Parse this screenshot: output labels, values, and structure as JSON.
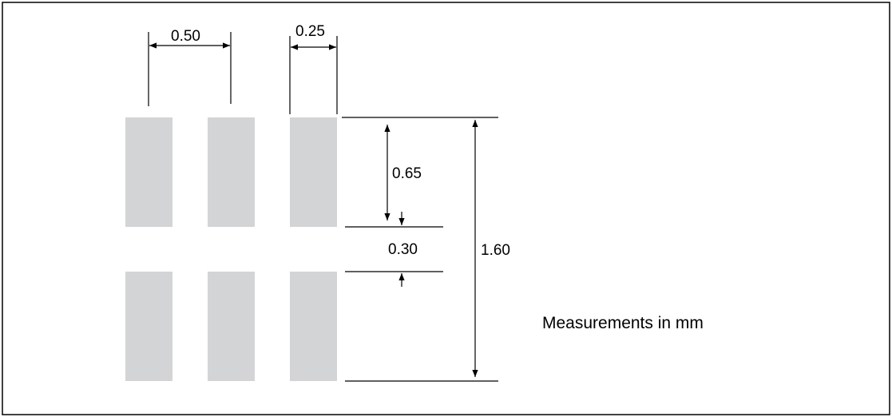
{
  "colors": {
    "pad_fill": "#d3d4d6",
    "line": "#000000",
    "frame": "#000000",
    "background": "#ffffff"
  },
  "pads": {
    "columns": 3,
    "rows": 2
  },
  "dimensions": {
    "pitch": "0.50",
    "pad_width": "0.25",
    "pad_length": "0.65",
    "gap": "0.30",
    "total_length": "1.60"
  },
  "note": "Measurements in mm"
}
